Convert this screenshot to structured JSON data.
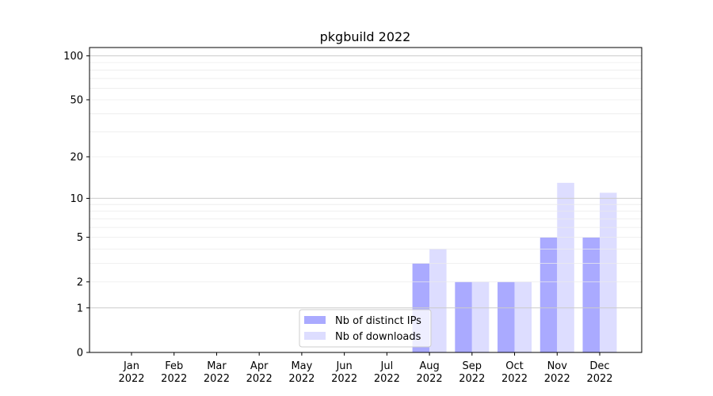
{
  "chart_data": {
    "type": "bar",
    "title": "pkgbuild 2022",
    "xlabel": "",
    "ylabel": "",
    "yscale": "log10(1+y)",
    "ylim": [
      0,
      114
    ],
    "categories": [
      "Jan\n2022",
      "Feb\n2022",
      "Mar\n2022",
      "Apr\n2022",
      "May\n2022",
      "Jun\n2022",
      "Jul\n2022",
      "Aug\n2022",
      "Sep\n2022",
      "Oct\n2022",
      "Nov\n2022",
      "Dec\n2022"
    ],
    "yticks": [
      0,
      1,
      2,
      5,
      10,
      20,
      50,
      100
    ],
    "grid": true,
    "legend_placement": "lower-center",
    "series": [
      {
        "name": "Nb of distinct IPs",
        "color": "#aaaaff",
        "values": [
          0,
          0,
          0,
          0,
          0,
          0,
          0,
          3,
          2,
          2,
          5,
          5
        ]
      },
      {
        "name": "Nb of downloads",
        "color": "#ddddff",
        "values": [
          0,
          0,
          0,
          0,
          0,
          0,
          0,
          4,
          2,
          2,
          13,
          11
        ]
      }
    ]
  }
}
